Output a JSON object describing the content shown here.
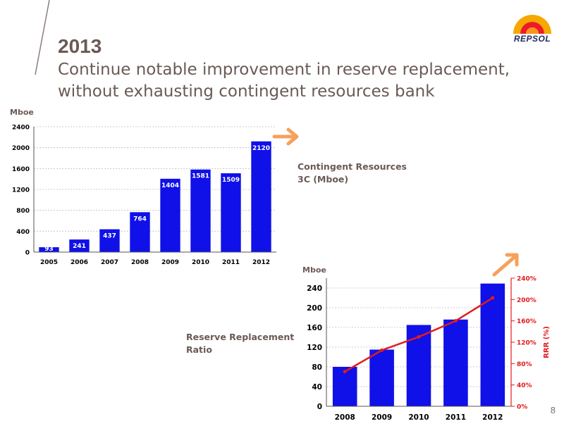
{
  "header": {
    "year": "2013",
    "subtitle_line1": "Continue notable improvement in reserve replacement,",
    "subtitle_line2": "without exhausting contingent resources bank",
    "logo_text": "REPSOL",
    "page_number": "8"
  },
  "labels": {
    "contingent_line1": "Contingent Resources",
    "contingent_line2": "3C (Mboe)",
    "rrr_line1": "Reserve Replacement",
    "rrr_line2": "Ratio"
  },
  "colors": {
    "bar": "#1010e8",
    "line": "#e21b1b",
    "arrow": "#f5a15c",
    "text": "#6a5a55"
  },
  "chart_data": [
    {
      "type": "bar",
      "ylabel": "Mboe",
      "categories": [
        "2005",
        "2006",
        "2007",
        "2008",
        "2009",
        "2010",
        "2011",
        "2012"
      ],
      "values": [
        93,
        241,
        437,
        764,
        1404,
        1581,
        1509,
        2120
      ],
      "data_labels": [
        "93",
        "241",
        "437",
        "764",
        "1404",
        "1581",
        "1509",
        "2120"
      ],
      "ylim": [
        0,
        2400
      ],
      "yticks": [
        0,
        400,
        800,
        1200,
        1600,
        2000,
        2400
      ],
      "grid": true
    },
    {
      "type": "bar",
      "ylabel": "Mboe",
      "y2label": "RRR (%)",
      "categories": [
        "2008",
        "2009",
        "2010",
        "2011",
        "2012"
      ],
      "series": [
        {
          "type": "bar",
          "axis": "left",
          "values": [
            80,
            115,
            165,
            176,
            249
          ]
        },
        {
          "type": "line",
          "axis": "right",
          "values": [
            65,
            105,
            130,
            160,
            203
          ]
        }
      ],
      "ylim": [
        0,
        260
      ],
      "yticks": [
        0,
        40,
        80,
        120,
        160,
        200,
        240
      ],
      "y2lim": [
        0,
        240
      ],
      "y2ticks": [
        "0%",
        "40%",
        "80%",
        "120%",
        "160%",
        "200%",
        "240%"
      ],
      "y2tick_values": [
        0,
        40,
        80,
        120,
        160,
        200,
        240
      ],
      "grid": true
    }
  ]
}
